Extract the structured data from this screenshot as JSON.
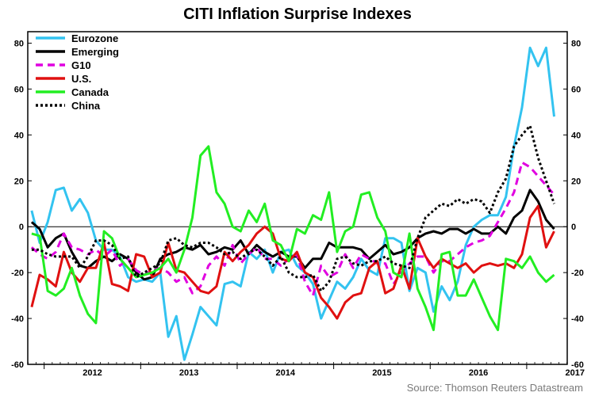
{
  "chart_data": {
    "type": "line",
    "title": "CITI Inflation Surprise Indexes",
    "source": "Source: Thomson Reuters Datastream",
    "ylim": [
      -60,
      85
    ],
    "y_ticks": [
      -60,
      -40,
      -20,
      0,
      20,
      40,
      60,
      80
    ],
    "xlim": [
      2011.83,
      2017.42
    ],
    "x_tick_labels": [
      {
        "label": "2012",
        "x": 2012.0
      },
      {
        "label": "2013",
        "x": 2013.0
      },
      {
        "label": "2014",
        "x": 2014.0
      },
      {
        "label": "2015",
        "x": 2015.0
      },
      {
        "label": "2016",
        "x": 2016.0
      },
      {
        "label": "2017",
        "x": 2017.0
      }
    ],
    "x_start": 2011.87,
    "x_step": 0.0833,
    "zero_line": true,
    "grid": false,
    "legend": "top-left",
    "series": [
      {
        "name": "Eurozone",
        "color": "#33c3f0",
        "dash": "solid",
        "values": [
          7,
          -7,
          2,
          16,
          17,
          7,
          12,
          6,
          -6,
          -10,
          -10,
          -13,
          -22,
          -24,
          -23,
          -24,
          -20,
          -48,
          -39,
          -58,
          -47,
          -35,
          -39,
          -43,
          -25,
          -24,
          -26,
          -11,
          -14,
          -10,
          -20,
          -11,
          -10,
          -17,
          -20,
          -25,
          -40,
          -32,
          -24,
          -27,
          -22,
          -14,
          -19,
          -21,
          -5,
          -5,
          -7,
          -28,
          -18,
          -20,
          -37,
          -26,
          -32,
          -24,
          -8,
          0,
          3,
          5,
          5,
          13,
          35,
          52,
          78,
          70,
          78,
          48
        ]
      },
      {
        "name": "Emerging",
        "color": "#000000",
        "dash": "solid",
        "values": [
          2,
          -1,
          -9,
          -5,
          -3,
          -11,
          -17,
          -18,
          -15,
          -13,
          -15,
          -12,
          -14,
          -20,
          -23,
          -22,
          -14,
          -12,
          -11,
          -9,
          -10,
          -8,
          -12,
          -11,
          -9,
          -10,
          -6,
          -12,
          -8,
          -11,
          -13,
          -11,
          -13,
          -13,
          -18,
          -14,
          -14,
          -7,
          -9,
          -9,
          -9,
          -10,
          -14,
          -11,
          -8,
          -12,
          -11,
          -9,
          -5,
          -3,
          -2,
          -3,
          -1,
          -1,
          -3,
          -1,
          -3,
          -3,
          0,
          -3,
          4,
          7,
          16,
          11,
          3,
          -1
        ]
      },
      {
        "name": "G10",
        "color": "#e000e0",
        "dash": "dashed",
        "values": [
          -9,
          -12,
          -14,
          -11,
          -3,
          -9,
          -10,
          -12,
          -10,
          -13,
          -10,
          -17,
          -14,
          -19,
          -21,
          -19,
          -18,
          -20,
          -24,
          -22,
          -29,
          -26,
          -17,
          -13,
          -17,
          -8,
          -16,
          -12,
          -9,
          -14,
          -14,
          -17,
          -14,
          -12,
          -24,
          -30,
          -17,
          -22,
          -20,
          -12,
          -18,
          -12,
          -14,
          -16,
          -16,
          -25,
          -20,
          -16,
          -13,
          -13,
          -20,
          -15,
          -15,
          -12,
          -9,
          -7,
          -6,
          -4,
          2,
          8,
          15,
          28,
          26,
          22,
          18,
          14
        ]
      },
      {
        "name": "U.S.",
        "color": "#e01010",
        "dash": "solid",
        "values": [
          -35,
          -21,
          -23,
          -26,
          -11,
          -20,
          -24,
          -18,
          -18,
          -7,
          -25,
          -26,
          -28,
          -12,
          -13,
          -22,
          -20,
          -7,
          -19,
          -20,
          -24,
          -28,
          -29,
          -26,
          -11,
          -15,
          -11,
          -8,
          -3,
          0,
          -3,
          -14,
          -15,
          -11,
          -20,
          -22,
          -31,
          -35,
          -40,
          -33,
          -30,
          -29,
          -18,
          -15,
          -29,
          -27,
          -17,
          -27,
          -5,
          -13,
          -18,
          -14,
          -16,
          -18,
          -16,
          -20,
          -17,
          -16,
          -17,
          -16,
          -18,
          -12,
          4,
          9,
          -9,
          -2
        ]
      },
      {
        "name": "Canada",
        "color": "#22ee22",
        "dash": "solid",
        "values": [
          -3,
          -4,
          -28,
          -30,
          -27,
          -18,
          -30,
          -38,
          -42,
          -2,
          -5,
          -14,
          -18,
          -22,
          -21,
          -20,
          -18,
          -14,
          -20,
          -10,
          4,
          31,
          35,
          15,
          10,
          0,
          -2,
          7,
          2,
          10,
          -6,
          -8,
          -15,
          -1,
          -3,
          5,
          3,
          15,
          -11,
          -2,
          0,
          14,
          15,
          4,
          -2,
          -20,
          -22,
          -3,
          -27,
          -35,
          -45,
          -12,
          -11,
          -30,
          -30,
          -23,
          -31,
          -39,
          -45,
          -14,
          -15,
          -18,
          -13,
          -20,
          -24,
          -21
        ]
      },
      {
        "name": "China",
        "color": "#000000",
        "dash": "dotted",
        "values": [
          -10,
          -10,
          -12,
          -13,
          -13,
          -13,
          -18,
          -13,
          -6,
          -6,
          -8,
          -14,
          -13,
          -22,
          -20,
          -18,
          -16,
          -6,
          -5,
          -8,
          -9,
          -7,
          -7,
          -9,
          -12,
          -11,
          -14,
          -11,
          -10,
          -13,
          -17,
          -13,
          -20,
          -22,
          -22,
          -21,
          -28,
          -24,
          -14,
          -13,
          -16,
          -17,
          -15,
          -15,
          -13,
          -16,
          -17,
          -18,
          -5,
          4,
          7,
          10,
          9,
          12,
          10,
          12,
          11,
          6,
          15,
          21,
          35,
          40,
          44,
          30,
          20,
          10
        ]
      }
    ]
  }
}
